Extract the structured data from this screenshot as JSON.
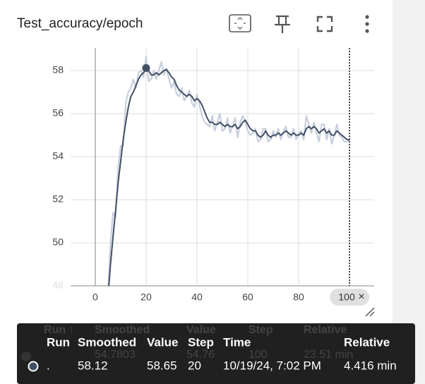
{
  "title": "Test_accuracy/epoch",
  "chart_data": {
    "type": "line",
    "x": [
      5,
      6,
      7,
      8,
      9,
      10,
      11,
      12,
      13,
      14,
      15,
      16,
      17,
      18,
      19,
      20,
      21,
      22,
      23,
      24,
      25,
      26,
      27,
      28,
      29,
      30,
      31,
      32,
      33,
      34,
      35,
      36,
      37,
      38,
      39,
      40,
      41,
      42,
      43,
      44,
      45,
      46,
      47,
      48,
      49,
      50,
      51,
      52,
      53,
      54,
      55,
      56,
      57,
      58,
      59,
      60,
      61,
      62,
      63,
      64,
      65,
      66,
      67,
      68,
      69,
      70,
      71,
      72,
      73,
      74,
      75,
      76,
      77,
      78,
      79,
      80,
      81,
      82,
      83,
      84,
      85,
      86,
      87,
      88,
      89,
      90,
      91,
      92,
      93,
      94,
      95,
      96,
      97,
      98,
      99,
      100
    ],
    "series": [
      {
        "color": "#c8cfdd",
        "values": [
          47.8,
          50,
          51.4,
          51.2,
          53.5,
          54.5,
          54.5,
          56.5,
          57,
          57.2,
          57.6,
          57.2,
          57.9,
          58,
          57.7,
          58.65,
          57.5,
          57.6,
          58,
          57.6,
          58,
          58.4,
          57.8,
          58.1,
          57.6,
          57.2,
          57.5,
          56.9,
          56.8,
          57.2,
          56.6,
          56.8,
          57.1,
          56.5,
          56.3,
          56.9,
          56.4,
          55.9,
          55.6,
          55.5,
          55.4,
          55.9,
          55.2,
          55.6,
          56,
          55.2,
          55.3,
          55.8,
          55.1,
          55.4,
          55.8,
          54.9,
          55.6,
          55.9,
          55.6,
          55.2,
          55,
          55.1,
          55.3,
          54.7,
          54.8,
          55.3,
          55.3,
          54.7,
          54.8,
          55.2,
          54.9,
          55.3,
          54.8,
          55.2,
          55.4,
          54.9,
          54.9,
          55.3,
          54.8,
          55.1,
          55.2,
          54.8,
          55.9,
          55.5,
          55.1,
          55.6,
          55.1,
          54.7,
          55.5,
          55.5,
          54.8,
          55.3,
          54.6,
          55,
          55.5,
          55,
          54.9,
          54.7,
          54.7,
          54.76
        ]
      },
      {
        "color": "#425066",
        "values": [
          47.5,
          49,
          50.3,
          51.5,
          52.8,
          53.8,
          54.8,
          55.6,
          56.3,
          56.8,
          57,
          57.3,
          57.6,
          57.8,
          57.9,
          58.12,
          58,
          57.8,
          57.8,
          57.9,
          57.8,
          57.9,
          58,
          58.05,
          57.9,
          57.7,
          57.6,
          57.3,
          57.1,
          57,
          56.9,
          56.8,
          56.9,
          56.8,
          56.6,
          56.7,
          56.6,
          56.4,
          56.1,
          55.8,
          55.6,
          55.6,
          55.5,
          55.5,
          55.6,
          55.5,
          55.4,
          55.5,
          55.4,
          55.4,
          55.5,
          55.3,
          55.4,
          55.6,
          55.7,
          55.5,
          55.3,
          55.2,
          55.2,
          55,
          54.9,
          55,
          55.2,
          55,
          54.9,
          55,
          55,
          55.1,
          55,
          55.1,
          55.2,
          55.1,
          55,
          55.1,
          55,
          55,
          55.1,
          55,
          55.3,
          55.4,
          55.3,
          55.4,
          55.3,
          55.1,
          55.2,
          55.3,
          55.1,
          55.2,
          55,
          55,
          55.2,
          55.1,
          55,
          54.9,
          54.8,
          54.7803
        ]
      }
    ],
    "xlim": [
      -9.7,
      109.7
    ],
    "xticks": [
      0,
      20,
      40,
      60,
      80,
      100
    ],
    "ylim": [
      48,
      59.05
    ],
    "yticks": [
      48,
      50,
      52,
      54,
      56,
      58
    ],
    "grid": true
  },
  "close_icon": "×",
  "tooltip": {
    "ghost_header": [
      "Run ↑",
      "Smoothed",
      "Value",
      "Step",
      "Relative"
    ],
    "ghost_row": [
      "54.7803",
      "54.76",
      "100",
      "23.51 min"
    ],
    "header": [
      "Run",
      "Smoothed",
      "Value",
      "Step",
      "Time",
      "Relative"
    ],
    "row": [
      ".",
      "58.12",
      "58.65",
      "20",
      "10/19/24, 7:02 PM",
      "4.416 min"
    ]
  }
}
